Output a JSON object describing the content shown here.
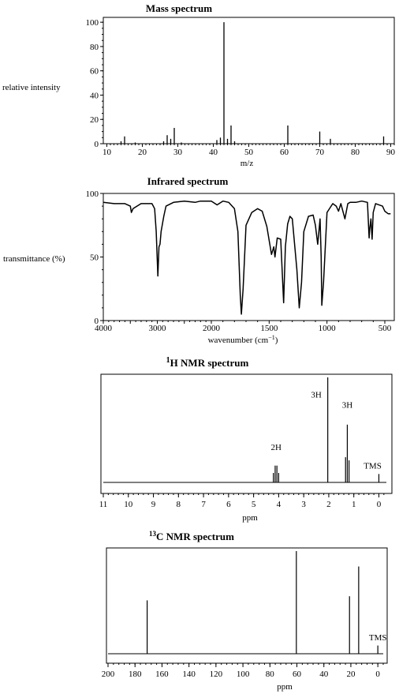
{
  "chart_data": [
    {
      "type": "bar",
      "title": "Mass spectrum",
      "xlabel": "m/z",
      "ylabel": "relative intensity",
      "xlim": [
        9,
        91
      ],
      "ylim": [
        0,
        104
      ],
      "xticks": [
        10,
        20,
        30,
        40,
        50,
        60,
        70,
        80,
        90
      ],
      "yticks": [
        0,
        20,
        40,
        60,
        80,
        100
      ],
      "peaks": [
        {
          "mz": 14,
          "intensity": 2
        },
        {
          "mz": 15,
          "intensity": 6
        },
        {
          "mz": 18,
          "intensity": 1
        },
        {
          "mz": 26,
          "intensity": 2
        },
        {
          "mz": 27,
          "intensity": 7
        },
        {
          "mz": 28,
          "intensity": 4
        },
        {
          "mz": 29,
          "intensity": 13
        },
        {
          "mz": 31,
          "intensity": 1
        },
        {
          "mz": 41,
          "intensity": 3
        },
        {
          "mz": 42,
          "intensity": 5
        },
        {
          "mz": 43,
          "intensity": 100
        },
        {
          "mz": 44,
          "intensity": 4
        },
        {
          "mz": 45,
          "intensity": 15
        },
        {
          "mz": 46,
          "intensity": 2
        },
        {
          "mz": 61,
          "intensity": 15
        },
        {
          "mz": 70,
          "intensity": 10
        },
        {
          "mz": 73,
          "intensity": 4
        },
        {
          "mz": 88,
          "intensity": 6
        }
      ]
    },
    {
      "type": "line",
      "title": "Infrared spectrum",
      "xlabel": "wavenumber (cm⁻¹)",
      "ylabel": "transmittance (%)",
      "xlim": [
        4000,
        450
      ],
      "ylim": [
        0,
        100
      ],
      "xticks": [
        4000,
        3000,
        2000,
        1500,
        1000,
        500
      ],
      "yticks": [
        0,
        50,
        100
      ],
      "points": [
        [
          4000,
          93
        ],
        [
          3800,
          92
        ],
        [
          3600,
          92
        ],
        [
          3500,
          90
        ],
        [
          3480,
          85
        ],
        [
          3450,
          88
        ],
        [
          3300,
          92
        ],
        [
          3100,
          92
        ],
        [
          3050,
          88
        ],
        [
          3020,
          70
        ],
        [
          2990,
          35
        ],
        [
          2970,
          58
        ],
        [
          2950,
          60
        ],
        [
          2930,
          70
        ],
        [
          2880,
          82
        ],
        [
          2840,
          90
        ],
        [
          2700,
          93
        ],
        [
          2500,
          94
        ],
        [
          2300,
          93
        ],
        [
          2200,
          94
        ],
        [
          2000,
          94
        ],
        [
          1950,
          91
        ],
        [
          1900,
          94
        ],
        [
          1850,
          93
        ],
        [
          1800,
          88
        ],
        [
          1770,
          70
        ],
        [
          1750,
          20
        ],
        [
          1740,
          5
        ],
        [
          1725,
          25
        ],
        [
          1700,
          75
        ],
        [
          1650,
          85
        ],
        [
          1600,
          88
        ],
        [
          1560,
          86
        ],
        [
          1520,
          74
        ],
        [
          1480,
          52
        ],
        [
          1460,
          58
        ],
        [
          1450,
          50
        ],
        [
          1430,
          65
        ],
        [
          1400,
          64
        ],
        [
          1375,
          14
        ],
        [
          1360,
          58
        ],
        [
          1340,
          76
        ],
        [
          1320,
          82
        ],
        [
          1300,
          80
        ],
        [
          1280,
          60
        ],
        [
          1260,
          40
        ],
        [
          1240,
          10
        ],
        [
          1220,
          30
        ],
        [
          1200,
          70
        ],
        [
          1160,
          82
        ],
        [
          1120,
          83
        ],
        [
          1100,
          75
        ],
        [
          1080,
          60
        ],
        [
          1060,
          80
        ],
        [
          1050,
          50
        ],
        [
          1045,
          12
        ],
        [
          1030,
          30
        ],
        [
          1000,
          85
        ],
        [
          950,
          92
        ],
        [
          920,
          90
        ],
        [
          900,
          86
        ],
        [
          880,
          92
        ],
        [
          845,
          80
        ],
        [
          820,
          92
        ],
        [
          800,
          93
        ],
        [
          750,
          93
        ],
        [
          700,
          94
        ],
        [
          650,
          93
        ],
        [
          636,
          65
        ],
        [
          630,
          72
        ],
        [
          620,
          80
        ],
        [
          610,
          64
        ],
        [
          600,
          85
        ],
        [
          580,
          92
        ],
        [
          520,
          90
        ],
        [
          500,
          86
        ],
        [
          470,
          84
        ],
        [
          450,
          84
        ]
      ]
    },
    {
      "type": "scatter",
      "title": "¹H NMR spectrum",
      "title_sup": "1",
      "title_rest": "H NMR spectrum",
      "xlabel": "ppm",
      "xlim": [
        11,
        -0.3
      ],
      "xticks": [
        11,
        10,
        9,
        8,
        7,
        6,
        5,
        4,
        3,
        2,
        1,
        0
      ],
      "lines": [
        {
          "ppm": 4.21,
          "h": 0.09
        },
        {
          "ppm": 4.14,
          "h": 0.16
        },
        {
          "ppm": 4.07,
          "h": 0.16
        },
        {
          "ppm": 4.0,
          "h": 0.09
        },
        {
          "ppm": 2.04,
          "h": 1.0
        },
        {
          "ppm": 1.33,
          "h": 0.24
        },
        {
          "ppm": 1.26,
          "h": 0.55
        },
        {
          "ppm": 1.19,
          "h": 0.21
        },
        {
          "ppm": 0.0,
          "h": 0.08
        }
      ],
      "annotations": [
        {
          "text": "2H",
          "ppm": 4.1,
          "h": 0.28
        },
        {
          "text": "3H",
          "ppm": 2.5,
          "h": 0.78
        },
        {
          "text": "3H",
          "ppm": 1.26,
          "h": 0.68
        },
        {
          "text": "TMS",
          "ppm": 0.25,
          "h": 0.1
        }
      ]
    },
    {
      "type": "scatter",
      "title": "¹³C NMR spectrum",
      "title_sup": "13",
      "title_rest": "C NMR spectrum",
      "xlabel": "ppm",
      "xlim": [
        200,
        -4
      ],
      "xticks": [
        200,
        180,
        160,
        140,
        120,
        100,
        80,
        60,
        40,
        20,
        0
      ],
      "lines": [
        {
          "ppm": 171,
          "h": 0.52
        },
        {
          "ppm": 60.4,
          "h": 1.0
        },
        {
          "ppm": 21.0,
          "h": 0.56
        },
        {
          "ppm": 14.2,
          "h": 0.85
        },
        {
          "ppm": 0.0,
          "h": 0.08
        }
      ],
      "annotations": [
        {
          "text": "TMS",
          "ppm": 0.0,
          "h": 0.1
        }
      ]
    }
  ]
}
